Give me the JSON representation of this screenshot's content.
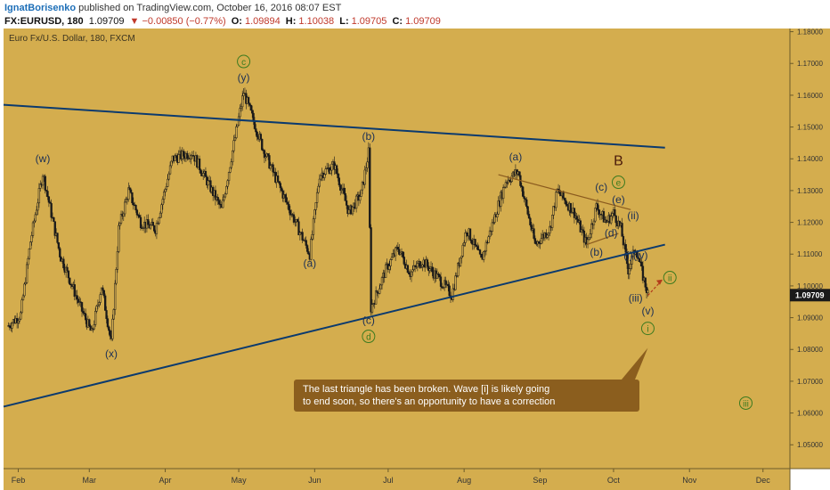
{
  "header": {
    "author": "IgnatBorisenko",
    "published_text": "published on TradingView.com, October 16, 2016 08:07 EST",
    "symbol": "FX:EURUSD, 180",
    "last": "1.09709",
    "change": "▼ −0.00850 (−0.77%)",
    "o_label": "O:",
    "o_val": "1.09894",
    "h_label": "H:",
    "h_val": "1.10038",
    "l_label": "L:",
    "l_val": "1.09705",
    "c_label": "C:",
    "c_val": "1.09709"
  },
  "chart_title": "Euro Fx/U.S. Dollar, 180, FXCM",
  "colors": {
    "background": "#d4ad4e",
    "candles": "#1a1a1a",
    "trendline": "#0b3a6e",
    "sub_triangle": "#8a5a1e",
    "wave_label": "#1b2f55",
    "green_label": "#3b7a1f",
    "callout": "#8b5e1e",
    "price_tag": "#1a1a1a"
  },
  "price_tag": "1.09709",
  "callout": {
    "line1": "The last triangle has been broken. Wave [i] is likely going",
    "line2": "to end soon, so there's an opportunity to have a correction"
  },
  "chart_data": {
    "type": "candlestick",
    "x_ticks": [
      "Feb",
      "Mar",
      "Apr",
      "May",
      "Jun",
      "Jul",
      "Aug",
      "Sep",
      "Oct",
      "Nov",
      "Dec"
    ],
    "y_ticks": [
      "1.05000",
      "1.06000",
      "1.07000",
      "1.08000",
      "1.09000",
      "1.10000",
      "1.11000",
      "1.12000",
      "1.13000",
      "1.14000",
      "1.15000",
      "1.16000",
      "1.17000",
      "1.18000"
    ],
    "ylim": [
      1.0425,
      1.181
    ],
    "xlim": [
      "2016-01-26",
      "2016-12-12"
    ],
    "price_path": [
      [
        "2016-01-28",
        1.0875
      ],
      [
        "2016-02-02",
        1.091
      ],
      [
        "2016-02-06",
        1.114
      ],
      [
        "2016-02-11",
        1.1355
      ],
      [
        "2016-02-18",
        1.11
      ],
      [
        "2016-02-26",
        1.094
      ],
      [
        "2016-03-02",
        1.085
      ],
      [
        "2016-03-06",
        1.1
      ],
      [
        "2016-03-10",
        1.082
      ],
      [
        "2016-03-13",
        1.118
      ],
      [
        "2016-03-17",
        1.13
      ],
      [
        "2016-03-22",
        1.12
      ],
      [
        "2016-03-28",
        1.118
      ],
      [
        "2016-04-04",
        1.14
      ],
      [
        "2016-04-12",
        1.142
      ],
      [
        "2016-04-20",
        1.13
      ],
      [
        "2016-04-24",
        1.124
      ],
      [
        "2016-05-03",
        1.161
      ],
      [
        "2016-05-11",
        1.143
      ],
      [
        "2016-05-16",
        1.134
      ],
      [
        "2016-05-23",
        1.122
      ],
      [
        "2016-05-30",
        1.11
      ],
      [
        "2016-06-03",
        1.135
      ],
      [
        "2016-06-09",
        1.138
      ],
      [
        "2016-06-15",
        1.123
      ],
      [
        "2016-06-20",
        1.129
      ],
      [
        "2016-06-23",
        1.142
      ],
      [
        "2016-06-24",
        1.093
      ],
      [
        "2016-06-30",
        1.105
      ],
      [
        "2016-07-05",
        1.112
      ],
      [
        "2016-07-10",
        1.104
      ],
      [
        "2016-07-15",
        1.108
      ],
      [
        "2016-07-22",
        1.102
      ],
      [
        "2016-07-27",
        1.097
      ],
      [
        "2016-08-02",
        1.118
      ],
      [
        "2016-08-08",
        1.108
      ],
      [
        "2016-08-18",
        1.133
      ],
      [
        "2016-08-23",
        1.136
      ],
      [
        "2016-08-30",
        1.113
      ],
      [
        "2016-09-05",
        1.118
      ],
      [
        "2016-09-08",
        1.13
      ],
      [
        "2016-09-15",
        1.123
      ],
      [
        "2016-09-20",
        1.113
      ],
      [
        "2016-09-24",
        1.125
      ],
      [
        "2016-09-28",
        1.12
      ],
      [
        "2016-10-01",
        1.123
      ],
      [
        "2016-10-04",
        1.118
      ],
      [
        "2016-10-07",
        1.105
      ],
      [
        "2016-10-10",
        1.112
      ],
      [
        "2016-10-13",
        1.103
      ],
      [
        "2016-10-15",
        1.0975
      ]
    ],
    "trendlines": [
      {
        "name": "upper",
        "from": [
          "2016-01-26",
          1.157
        ],
        "to": [
          "2016-10-22",
          1.1435
        ]
      },
      {
        "name": "lower",
        "from": [
          "2016-01-26",
          1.062
        ],
        "to": [
          "2016-10-22",
          1.113
        ]
      },
      {
        "name": "sub_upper",
        "from": [
          "2016-08-15",
          1.135
        ],
        "to": [
          "2016-10-08",
          1.124
        ]
      },
      {
        "name": "sub_lower",
        "from": [
          "2016-09-20",
          1.113
        ],
        "to": [
          "2016-10-03",
          1.1165
        ]
      }
    ],
    "projection": {
      "from": [
        "2016-10-15",
        1.097
      ],
      "to": [
        "2016-10-21",
        1.102
      ]
    },
    "wave_labels": [
      {
        "text": "(w)",
        "x": "2016-02-11",
        "y": 1.139,
        "color": "navy"
      },
      {
        "text": "(x)",
        "x": "2016-03-10",
        "y": 1.0775,
        "color": "navy"
      },
      {
        "text": "(y)",
        "x": "2016-05-03",
        "y": 1.1645,
        "color": "navy"
      },
      {
        "text": "c",
        "x": "2016-05-03",
        "y": 1.1695,
        "color": "green"
      },
      {
        "text": "(a)",
        "x": "2016-05-30",
        "y": 1.106,
        "color": "navy"
      },
      {
        "text": "(b)",
        "x": "2016-06-23",
        "y": 1.146,
        "color": "navy"
      },
      {
        "text": "(c)",
        "x": "2016-06-23",
        "y": 1.088,
        "color": "navy"
      },
      {
        "text": "d",
        "x": "2016-06-23",
        "y": 1.083,
        "color": "green"
      },
      {
        "text": "(a)",
        "x": "2016-08-22",
        "y": 1.1395,
        "color": "navy"
      },
      {
        "text": "(b)",
        "x": "2016-09-24",
        "y": 1.1095,
        "color": "navy"
      },
      {
        "text": "(c)",
        "x": "2016-09-26",
        "y": 1.13,
        "color": "navy"
      },
      {
        "text": "(d)",
        "x": "2016-09-30",
        "y": 1.1155,
        "color": "navy"
      },
      {
        "text": "(e)",
        "x": "2016-10-03",
        "y": 1.126,
        "color": "navy"
      },
      {
        "text": "e",
        "x": "2016-10-03",
        "y": 1.1315,
        "color": "green"
      },
      {
        "text": "B",
        "x": "2016-10-03",
        "y": 1.138,
        "color": "dark"
      },
      {
        "text": "(ii)",
        "x": "2016-10-09",
        "y": 1.121,
        "color": "navy"
      },
      {
        "text": "(i)",
        "x": "2016-10-07",
        "y": 1.1085,
        "color": "navy"
      },
      {
        "text": "(iv)",
        "x": "2016-10-12",
        "y": 1.1085,
        "color": "navy"
      },
      {
        "text": "(iii)",
        "x": "2016-10-10",
        "y": 1.095,
        "color": "navy"
      },
      {
        "text": "(v)",
        "x": "2016-10-15",
        "y": 1.091,
        "color": "navy"
      },
      {
        "text": "i",
        "x": "2016-10-15",
        "y": 1.0855,
        "color": "green"
      },
      {
        "text": "ii",
        "x": "2016-10-24",
        "y": 1.1015,
        "color": "green"
      },
      {
        "text": "iii",
        "x": "2016-11-24",
        "y": 1.062,
        "color": "green"
      }
    ]
  }
}
